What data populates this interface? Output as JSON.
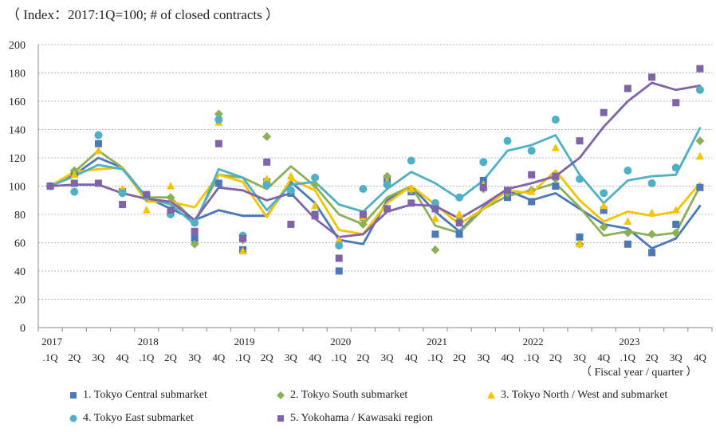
{
  "header": {
    "units_note": "（ Index：2017:1Q=100; # of closed contracts ）"
  },
  "chart_data": {
    "type": "line",
    "y_axis": {
      "min": 0,
      "max": 200,
      "step": 20,
      "ticks": [
        "0",
        "20",
        "40",
        "60",
        "80",
        "100",
        "120",
        "140",
        "160",
        "180",
        "200"
      ]
    },
    "x_quarters": [
      ".1Q",
      "2Q",
      "3Q",
      "4Q",
      ".1Q",
      "2Q",
      "3Q",
      "4Q",
      ".1Q",
      "2Q",
      "3Q",
      "4Q",
      ".1Q",
      "2Q",
      "3Q",
      "4Q",
      ".1Q",
      "2Q",
      "3Q",
      "4Q",
      ".1Q",
      "2Q",
      "3Q",
      "4Q",
      ".1Q",
      "2Q",
      "3Q",
      "4Q"
    ],
    "x_years": [
      {
        "label": "2017",
        "index": 0
      },
      {
        "label": "2018",
        "index": 4
      },
      {
        "label": "2019",
        "index": 8
      },
      {
        "label": "2020",
        "index": 12
      },
      {
        "label": "2021",
        "index": 16
      },
      {
        "label": "2022",
        "index": 20
      },
      {
        "label": "2023",
        "index": 24
      }
    ],
    "x_axis_note": "（ Fiscal year / quarter ）",
    "series": [
      {
        "name": "1. Tokyo Central submarket",
        "marker": "square",
        "color": "#4a78b8",
        "points": [
          100,
          109,
          130,
          96,
          93,
          82,
          63,
          102,
          55,
          103,
          95,
          80,
          40,
          78,
          104,
          96,
          66,
          66,
          104,
          92,
          89,
          100,
          64,
          83,
          59,
          53,
          73,
          99
        ],
        "line": [
          100,
          108,
          120,
          113,
          92,
          84,
          76,
          83,
          79,
          79,
          103,
          88,
          62,
          59,
          90,
          100,
          82,
          68,
          85,
          97,
          90,
          95,
          84,
          73,
          70,
          56,
          63,
          86
        ]
      },
      {
        "name": "2. Tokyo South submarket",
        "marker": "diamond",
        "color": "#8cb058",
        "points": [
          100,
          111,
          136,
          96,
          92,
          92,
          59,
          151,
          62,
          135,
          97,
          101,
          58,
          73,
          107,
          97,
          55,
          78,
          98,
          95,
          97,
          105,
          59,
          71,
          67,
          66,
          67,
          132
        ],
        "line": [
          100,
          110,
          125,
          113,
          92,
          92,
          75,
          108,
          106,
          98,
          114,
          100,
          80,
          73,
          92,
          100,
          72,
          67,
          84,
          93,
          97,
          102,
          85,
          65,
          68,
          65,
          67,
          100
        ]
      },
      {
        "name": "3. Tokyo North / West and  submarket",
        "marker": "triangle",
        "color": "#f5c400",
        "points": [
          100,
          108,
          125,
          98,
          83,
          100,
          68,
          145,
          54,
          105,
          107,
          86,
          62,
          78,
          103,
          98,
          77,
          80,
          101,
          97,
          96,
          127,
          59,
          86,
          75,
          81,
          83,
          121
        ],
        "line": [
          100,
          110,
          112,
          113,
          89,
          89,
          85,
          108,
          103,
          78,
          105,
          97,
          69,
          66,
          88,
          100,
          87,
          73,
          84,
          97,
          95,
          111,
          90,
          75,
          82,
          79,
          82,
          102
        ]
      },
      {
        "name": "4. Tokyo East submarket",
        "marker": "circle",
        "color": "#4fb0c6",
        "points": [
          100,
          96,
          136,
          95,
          93,
          80,
          74,
          147,
          65,
          101,
          97,
          106,
          58,
          98,
          101,
          118,
          88,
          92,
          117,
          132,
          125,
          147,
          105,
          95,
          111,
          102,
          113,
          168
        ],
        "line": [
          100,
          107,
          115,
          112,
          92,
          87,
          73,
          112,
          106,
          83,
          101,
          103,
          87,
          82,
          98,
          110,
          102,
          91,
          104,
          125,
          129,
          136,
          108,
          88,
          104,
          107,
          108,
          141
        ]
      },
      {
        "name": "5. Yokohama / Kawasaki region",
        "marker": "square",
        "color": "#7f64a8",
        "points": [
          100,
          102,
          102,
          87,
          94,
          83,
          68,
          130,
          63,
          117,
          73,
          79,
          49,
          80,
          84,
          88,
          84,
          74,
          99,
          97,
          108,
          107,
          132,
          152,
          169,
          177,
          159,
          183
        ],
        "line": [
          100,
          101,
          101,
          95,
          91,
          89,
          76,
          99,
          97,
          90,
          95,
          77,
          64,
          66,
          82,
          87,
          86,
          77,
          87,
          98,
          102,
          107,
          120,
          142,
          160,
          173,
          168,
          171
        ]
      }
    ]
  }
}
